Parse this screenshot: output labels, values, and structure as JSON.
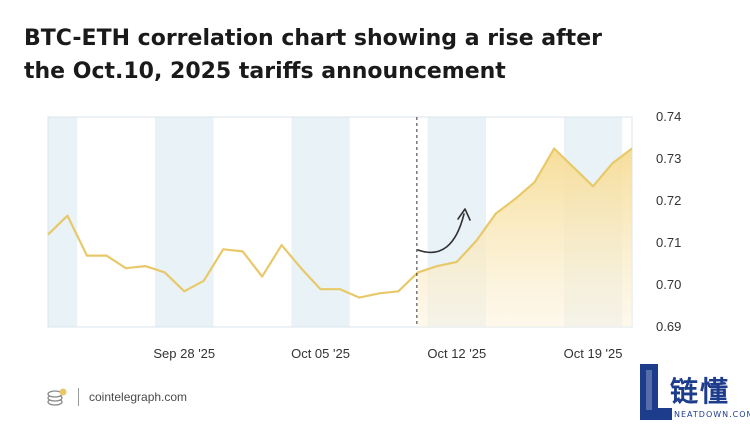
{
  "header": {
    "title": "BTC-ETH correlation chart showing a rise after the Oct.10, 2025 tariffs announcement"
  },
  "footer": {
    "source": "cointelegraph.com"
  },
  "watermark": {
    "chinese_text": "链懂",
    "english_text": "NEATDOWN.COM"
  },
  "colors": {
    "line": "#e8c96a",
    "area": "#fbeccb",
    "band": "#e9f2f7",
    "marker": "#333333",
    "accent_brand": "#1d3c8c"
  },
  "chart_data": {
    "type": "area",
    "title": "BTC-ETH correlation chart showing a rise after the Oct.10, 2025 tariffs announcement",
    "xlabel": "",
    "ylabel": "",
    "x": [
      "2025-09-21",
      "2025-09-22",
      "2025-09-23",
      "2025-09-24",
      "2025-09-25",
      "2025-09-26",
      "2025-09-27",
      "2025-09-28",
      "2025-09-29",
      "2025-09-30",
      "2025-10-01",
      "2025-10-02",
      "2025-10-03",
      "2025-10-04",
      "2025-10-05",
      "2025-10-06",
      "2025-10-07",
      "2025-10-08",
      "2025-10-09",
      "2025-10-10",
      "2025-10-11",
      "2025-10-12",
      "2025-10-13",
      "2025-10-14",
      "2025-10-15",
      "2025-10-16",
      "2025-10-17",
      "2025-10-18",
      "2025-10-19",
      "2025-10-20",
      "2025-10-21"
    ],
    "values": [
      0.712,
      0.7165,
      0.707,
      0.707,
      0.704,
      0.7045,
      0.703,
      0.6985,
      0.701,
      0.7085,
      0.708,
      0.702,
      0.7095,
      0.704,
      0.699,
      0.699,
      0.697,
      0.698,
      0.6985,
      0.703,
      0.7045,
      0.7055,
      0.7105,
      0.717,
      0.7205,
      0.7245,
      0.7325,
      0.728,
      0.7235,
      0.729,
      0.7325
    ],
    "highlight_start_index": 19,
    "event_date": "2025-10-10",
    "ylim": [
      0.69,
      0.74
    ],
    "yticks": [
      "0.69",
      "0.70",
      "0.71",
      "0.72",
      "0.73",
      "0.74"
    ],
    "xticks": [
      {
        "date": "2025-09-28",
        "label": "Sep 28 '25"
      },
      {
        "date": "2025-10-05",
        "label": "Oct 05 '25"
      },
      {
        "date": "2025-10-12",
        "label": "Oct 12 '25"
      },
      {
        "date": "2025-10-19",
        "label": "Oct 19 '25"
      }
    ],
    "shaded_weekend_ranges": [
      [
        "2025-09-21",
        "2025-09-22"
      ],
      [
        "2025-09-27",
        "2025-09-29"
      ],
      [
        "2025-10-04",
        "2025-10-06"
      ],
      [
        "2025-10-11",
        "2025-10-13"
      ],
      [
        "2025-10-18",
        "2025-10-20"
      ]
    ],
    "grid": false,
    "legend": "none"
  }
}
